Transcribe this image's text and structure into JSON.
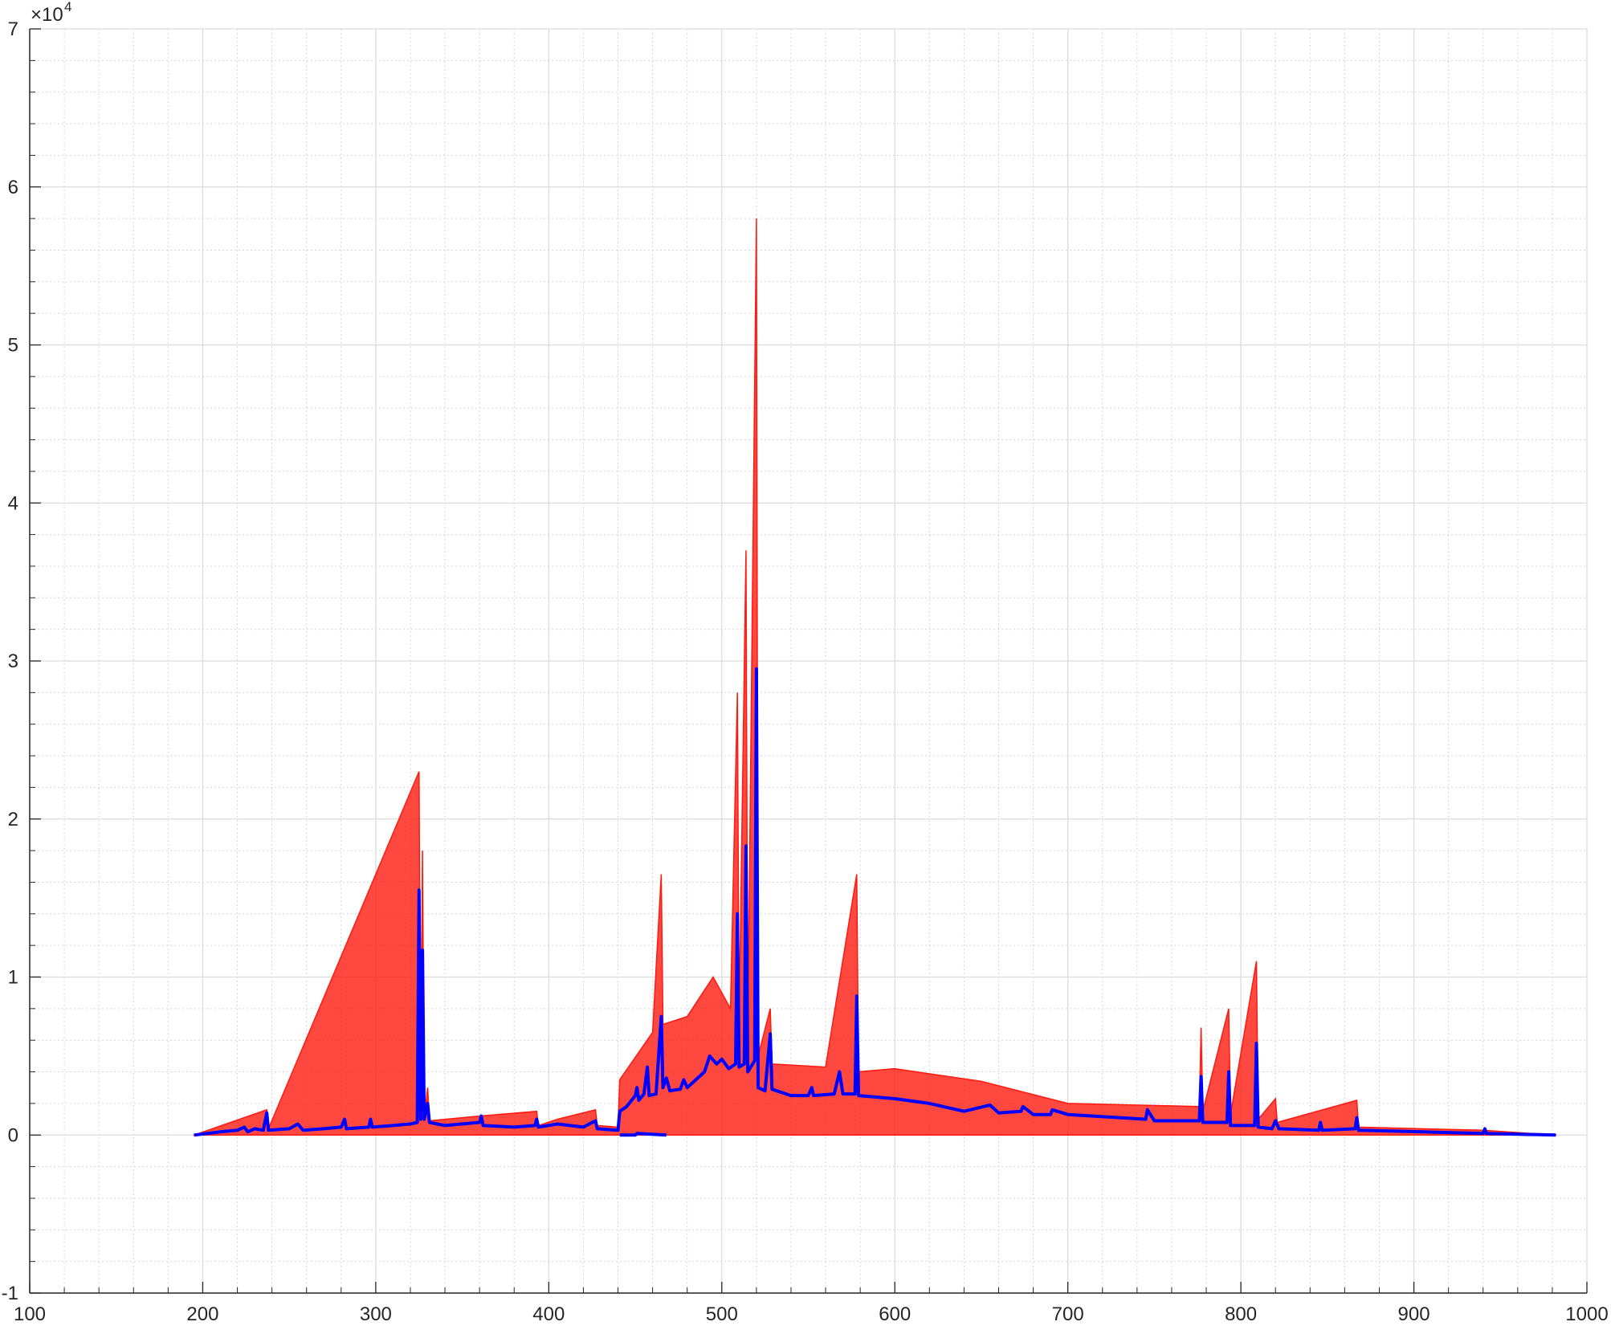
{
  "chart_data": {
    "type": "line",
    "y_exponent_base": "×10",
    "y_exponent_power": "4",
    "xlim": [
      100,
      1000
    ],
    "xticks": [
      100,
      200,
      300,
      400,
      500,
      600,
      700,
      800,
      900,
      1000
    ],
    "ylim": [
      -10000,
      70000
    ],
    "yticks": [
      {
        "value": -10000,
        "label": "-1"
      },
      {
        "value": 0,
        "label": "0"
      },
      {
        "value": 10000,
        "label": "1"
      },
      {
        "value": 20000,
        "label": "2"
      },
      {
        "value": 30000,
        "label": "3"
      },
      {
        "value": 40000,
        "label": "4"
      },
      {
        "value": 50000,
        "label": "5"
      },
      {
        "value": 60000,
        "label": "6"
      },
      {
        "value": 70000,
        "label": "7"
      }
    ],
    "grid": true,
    "minor_grid": true,
    "series": [
      {
        "color": "#ff1a10",
        "fill": true,
        "x": [
          195,
          237,
          238,
          325,
          326,
          327,
          328,
          330,
          331,
          360,
          393,
          394,
          405,
          427,
          428,
          440,
          441,
          460,
          465,
          466,
          480,
          495,
          505,
          509,
          510,
          514,
          515,
          520,
          521,
          528,
          529,
          560,
          578,
          579,
          600,
          650,
          700,
          776,
          777,
          778,
          793,
          794,
          809,
          810,
          820,
          821,
          867,
          868,
          940,
          982
        ],
        "values": [
          0,
          1600,
          400,
          23000,
          1000,
          18000,
          1000,
          3000,
          900,
          1200,
          1500,
          600,
          1000,
          1600,
          600,
          500,
          3500,
          6500,
          16500,
          7000,
          7500,
          10000,
          8000,
          28000,
          7000,
          37000,
          6000,
          58000,
          5000,
          8000,
          4500,
          4300,
          16500,
          4000,
          4200,
          3400,
          2000,
          1800,
          6800,
          1500,
          8000,
          1300,
          11000,
          1000,
          2300,
          800,
          2200,
          500,
          300,
          0
        ]
      },
      {
        "color": "#0000ff",
        "fill": false,
        "x": [
          195,
          210,
          220,
          224,
          226,
          230,
          235,
          237,
          238,
          250,
          255,
          258,
          270,
          280,
          282,
          283,
          296,
          297,
          298,
          310,
          320,
          324,
          325,
          326,
          327,
          328,
          330,
          331,
          340,
          360,
          361,
          362,
          380,
          392,
          393,
          394,
          405,
          420,
          427,
          428,
          440,
          441,
          445,
          450,
          451,
          452,
          455,
          457,
          458,
          462,
          465,
          466,
          468,
          470,
          476,
          478,
          480,
          485,
          490,
          493,
          497,
          500,
          504,
          508,
          509,
          510,
          513,
          514,
          515,
          519,
          520,
          521,
          525,
          528,
          529,
          540,
          550,
          552,
          553,
          565,
          568,
          570,
          577,
          578,
          579,
          600,
          620,
          640,
          655,
          660,
          673,
          674,
          680,
          690,
          691,
          700,
          730,
          745,
          746,
          750,
          776,
          777,
          778,
          792,
          793,
          794,
          808,
          809,
          810,
          818,
          820,
          822,
          845,
          846,
          847,
          866,
          867,
          868,
          905,
          940,
          941,
          942,
          982
        ],
        "values": [
          0,
          200,
          300,
          500,
          200,
          400,
          300,
          1400,
          300,
          400,
          700,
          300,
          400,
          500,
          1000,
          400,
          500,
          1000,
          500,
          600,
          700,
          800,
          15500,
          1000,
          11700,
          1000,
          2000,
          800,
          600,
          800,
          1200,
          600,
          500,
          600,
          1000,
          500,
          700,
          500,
          900,
          400,
          300,
          1500,
          1800,
          2500,
          3000,
          2200,
          2600,
          4300,
          2500,
          2600,
          7500,
          3000,
          3600,
          2800,
          2900,
          3500,
          3000,
          3500,
          4000,
          5000,
          4500,
          4800,
          4200,
          4500,
          14000,
          4300,
          4500,
          18300,
          4000,
          4700,
          29500,
          3000,
          2800,
          6400,
          2900,
          2500,
          2500,
          3000,
          2500,
          2600,
          4000,
          2600,
          2600,
          8800,
          2500,
          2300,
          2000,
          1500,
          1900,
          1400,
          1500,
          1800,
          1300,
          1300,
          1600,
          1300,
          1100,
          1000,
          1600,
          900,
          900,
          3700,
          800,
          800,
          4000,
          600,
          600,
          5800,
          500,
          400,
          900,
          400,
          300,
          800,
          300,
          400,
          1100,
          300,
          200,
          100,
          400,
          100,
          0
        ]
      },
      {
        "color": "#0000ff",
        "fill": false,
        "x": [
          441,
          450,
          451,
          468
        ],
        "values": [
          0,
          0,
          100,
          0
        ]
      }
    ]
  }
}
